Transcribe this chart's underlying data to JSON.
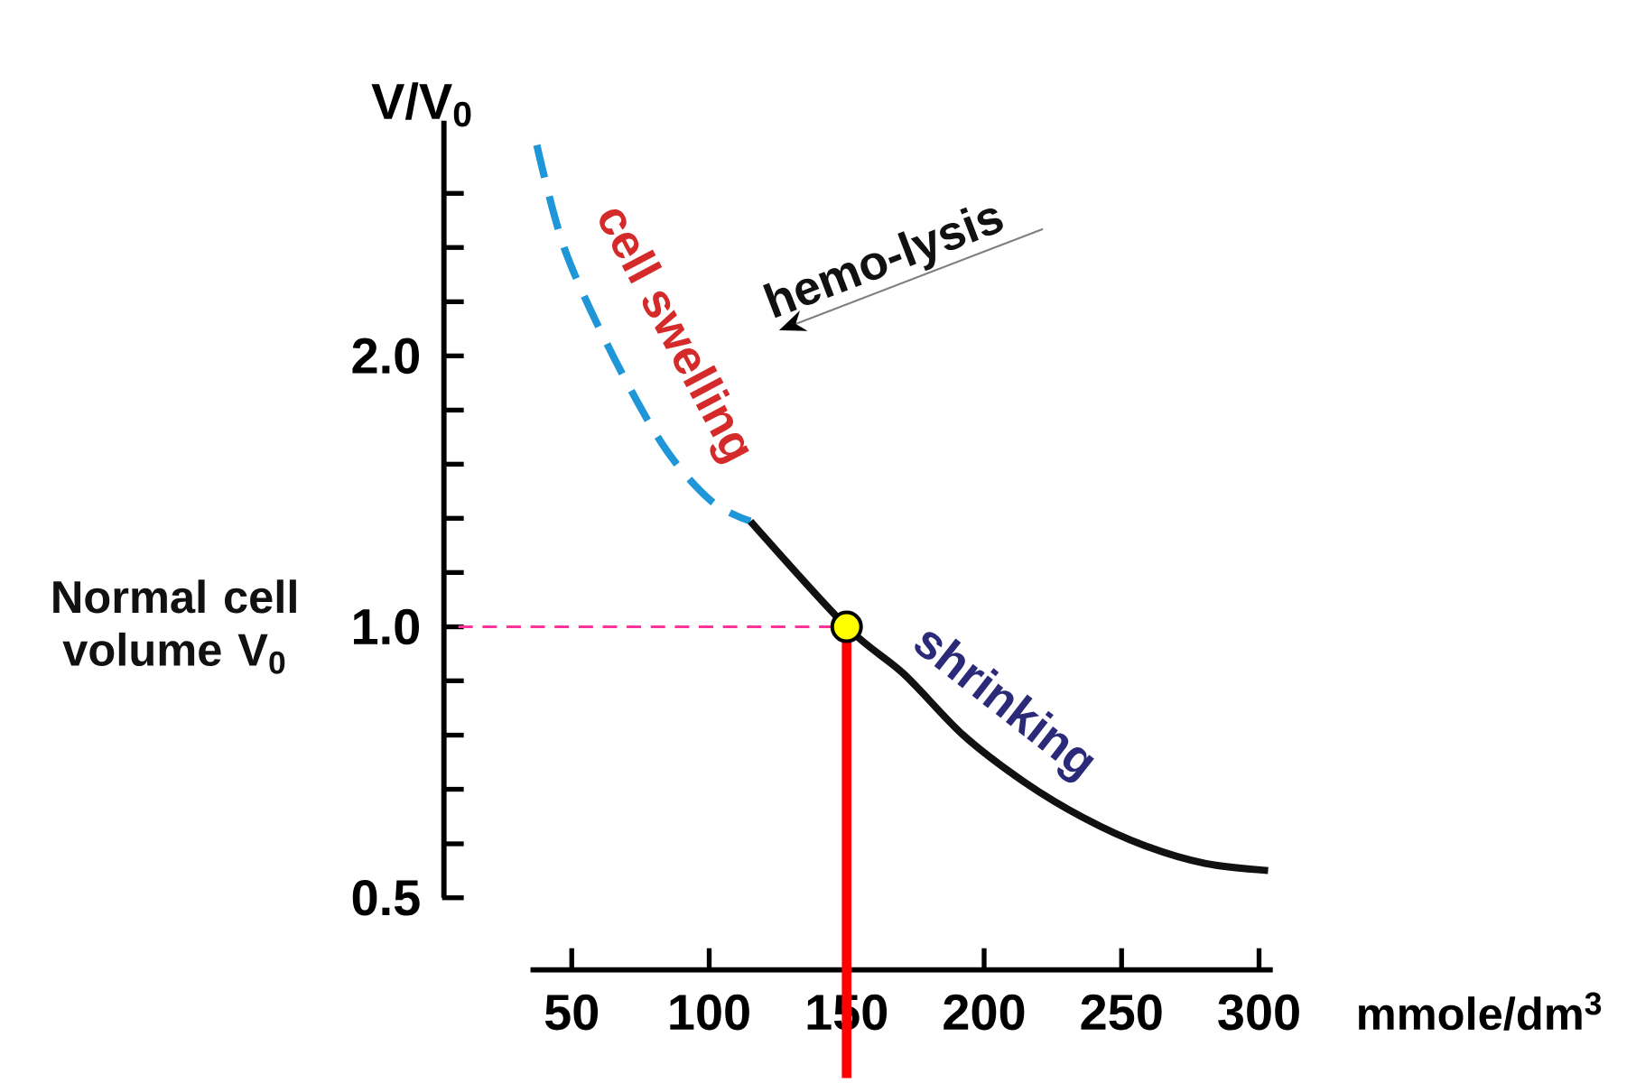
{
  "chart_data": {
    "type": "line",
    "xlabel": "mmole/dm$^{3}$",
    "ylabel": "V/V$_{0}$",
    "xlim": [
      35,
      305
    ],
    "xticks": [
      50,
      100,
      150,
      200,
      250,
      300
    ],
    "ylim": [
      0.5,
      3.65
    ],
    "log": "y",
    "yticks": [
      0.5,
      {
        "value": 0.574,
        "label": null
      },
      {
        "value": 0.66,
        "label": null
      },
      {
        "value": 0.758,
        "label": null
      },
      {
        "value": 0.871,
        "label": null
      },
      {
        "value": 1,
        "label": "1.0"
      },
      {
        "value": 1.149,
        "label": null
      },
      {
        "value": 1.32,
        "label": null
      },
      {
        "value": 1.516,
        "label": null
      },
      {
        "value": 1.741,
        "label": null
      },
      {
        "value": 2,
        "label": "2.0"
      },
      {
        "value": 2.297,
        "label": null
      },
      {
        "value": 2.639,
        "label": null
      },
      {
        "value": 3.031,
        "label": null
      }
    ],
    "series": [
      {
        "x": [
          37.3,
          47.2,
          63.6,
          83.3,
          100.7,
          115.0
        ],
        "values": [
          3.43,
          2.64,
          2.04,
          1.59,
          1.38,
          1.31
        ],
        "color": "#1e96d8",
        "line_style": "dashed",
        "marker": "none"
      },
      {
        "x": [
          115.0,
          150,
          170.7,
          192.4,
          214.7,
          236.4,
          258.0,
          280.3,
          303.3
        ],
        "values": [
          1.31,
          1.0,
          0.887,
          0.758,
          0.672,
          0.613,
          0.572,
          0.546,
          0.536
        ],
        "color": "#111111",
        "line_style": "solid",
        "marker": "none"
      },
      {
        "type": "scatter",
        "x": [
          150
        ],
        "values": [
          1.0
        ],
        "color": "#ffff00"
      }
    ],
    "ref_lines": [
      {
        "axis": "y",
        "value": 1,
        "color": "#ff3399",
        "line_style": "dashed"
      },
      {
        "axis": "x",
        "value": 150,
        "color": "#ff0000",
        "line_style": "solid"
      }
    ],
    "annotations": [
      "cell swelling",
      "hemo-lysis",
      "shrinking",
      "Normal cell volume V$_{0}$"
    ]
  }
}
